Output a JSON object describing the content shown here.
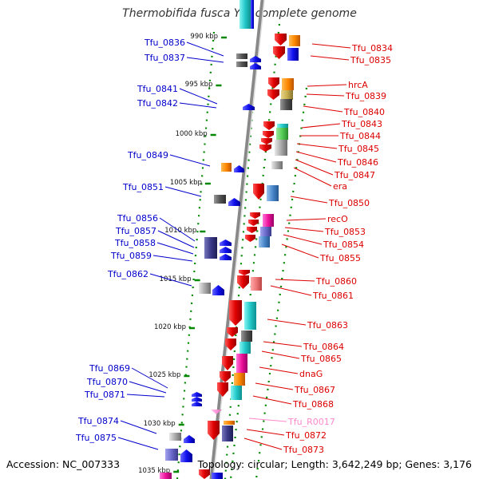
{
  "title": "Thermobifida fusca YX, complete genome",
  "footer": {
    "accession": "Accession: NC_007333",
    "topology": "Topology: circular; Length: 3,642,249 bp; Genes: 3,176"
  },
  "colors": {
    "reverse_label": "#0000cc",
    "forward_label": "#dd0000",
    "rna_label": "#ff88cc",
    "tick": "#008800",
    "dna": "#888888",
    "reverse_arrow": "#0000ee",
    "forward_arrow": "#ee0000"
  },
  "ticks": [
    "990 kbp",
    "995 kbp",
    "1000 kbp",
    "1005 kbp",
    "1010 kbp",
    "1015 kbp",
    "1020 kbp",
    "1025 kbp",
    "1030 kbp",
    "1035 kbp"
  ],
  "reverse_genes": [
    "Tfu_0836",
    "Tfu_0837",
    "Tfu_0841",
    "Tfu_0842",
    "Tfu_0849",
    "Tfu_0851",
    "Tfu_0856",
    "Tfu_0857",
    "Tfu_0858",
    "Tfu_0859",
    "Tfu_0862",
    "Tfu_0869",
    "Tfu_0870",
    "Tfu_0871",
    "Tfu_0874",
    "Tfu_0875"
  ],
  "forward_genes": [
    "Tfu_0834",
    "Tfu_0835",
    "hrcA",
    "Tfu_0839",
    "Tfu_0840",
    "Tfu_0843",
    "Tfu_0844",
    "Tfu_0845",
    "Tfu_0846",
    "Tfu_0847",
    "era",
    "Tfu_0850",
    "recO",
    "Tfu_0853",
    "Tfu_0854",
    "Tfu_0855",
    "Tfu_0860",
    "Tfu_0861",
    "Tfu_0863",
    "Tfu_0864",
    "Tfu_0865",
    "dnaG",
    "Tfu_0867",
    "Tfu_0868",
    "Tfu_R0017",
    "Tfu_0872",
    "Tfu_0873"
  ],
  "rna_genes": [
    "Tfu_R0017"
  ]
}
